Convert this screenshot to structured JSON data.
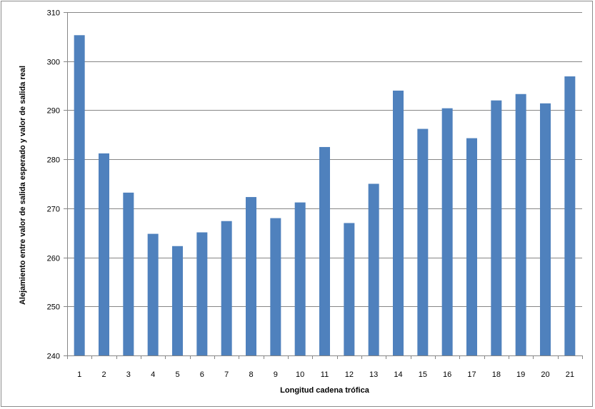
{
  "chart_data": {
    "type": "bar",
    "title": "",
    "xlabel": "Longitud cadena  trófica",
    "ylabel": "Alejamiento entre valor de salida esperado y valor de salida  real",
    "categories": [
      "1",
      "2",
      "3",
      "4",
      "5",
      "6",
      "7",
      "8",
      "9",
      "10",
      "11",
      "12",
      "13",
      "14",
      "15",
      "16",
      "17",
      "18",
      "19",
      "20",
      "21"
    ],
    "values": [
      305.3,
      281.2,
      273.2,
      264.8,
      262.3,
      265.1,
      267.4,
      272.3,
      268.0,
      271.2,
      282.5,
      267.0,
      275.0,
      294.0,
      286.2,
      290.4,
      284.3,
      292.0,
      293.3,
      291.4,
      296.9
    ],
    "ylim": [
      240,
      310
    ],
    "yticks": [
      240,
      250,
      260,
      270,
      280,
      290,
      300,
      310
    ],
    "grid": true,
    "legend": "none",
    "bar_color": "#4f81bd",
    "grid_color": "#868686"
  }
}
